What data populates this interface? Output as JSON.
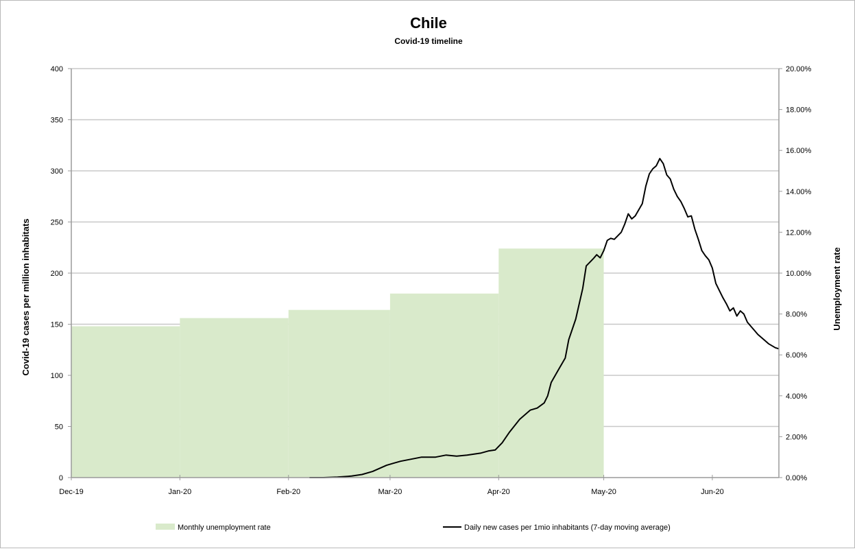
{
  "chart_data": {
    "type": "line",
    "title": "Chile",
    "subtitle": "Covid-19 timeline",
    "ylabel": "Covid-19 cases per million inhabitats",
    "y2label": "Unemployment rate",
    "ylim": [
      0,
      400
    ],
    "y2lim": [
      0,
      0.2
    ],
    "xlim": [
      "2019-12-01",
      "2020-06-20"
    ],
    "yticks": [
      "0",
      "50",
      "100",
      "150",
      "200",
      "250",
      "300",
      "350",
      "400"
    ],
    "y2ticks": [
      "0.00%",
      "2.00%",
      "4.00%",
      "6.00%",
      "8.00%",
      "10.00%",
      "12.00%",
      "14.00%",
      "16.00%",
      "18.00%",
      "20.00%"
    ],
    "xticks": [
      {
        "date": "2019-12-01",
        "label": "Dec-19"
      },
      {
        "date": "2020-01-01",
        "label": "Jan-20"
      },
      {
        "date": "2020-02-01",
        "label": "Feb-20"
      },
      {
        "date": "2020-03-01",
        "label": "Mar-20"
      },
      {
        "date": "2020-04-01",
        "label": "Apr-20"
      },
      {
        "date": "2020-05-01",
        "label": "May-20"
      },
      {
        "date": "2020-06-01",
        "label": "Jun-20"
      }
    ],
    "grid": "horizontal",
    "legend_position": "bottom",
    "series": [
      {
        "name": "Monthly unemployment rate",
        "type": "area",
        "axis": "right",
        "color": "#d9eacb",
        "points": [
          {
            "start": "2019-12-01",
            "end": "2020-01-01",
            "value": 0.074
          },
          {
            "start": "2020-01-01",
            "end": "2020-02-01",
            "value": 0.078
          },
          {
            "start": "2020-02-01",
            "end": "2020-03-01",
            "value": 0.082
          },
          {
            "start": "2020-03-01",
            "end": "2020-04-01",
            "value": 0.09
          },
          {
            "start": "2020-04-01",
            "end": "2020-05-01",
            "value": 0.112
          }
        ]
      },
      {
        "name": "Daily new cases per 1mio inhabitants (7-day moving average)",
        "type": "line",
        "axis": "left",
        "color": "#000000",
        "points": [
          [
            "2020-02-07",
            0
          ],
          [
            "2020-02-11",
            0
          ],
          [
            "2020-02-15",
            0.5
          ],
          [
            "2020-02-19",
            1.5
          ],
          [
            "2020-02-22",
            3
          ],
          [
            "2020-02-25",
            6
          ],
          [
            "2020-02-27",
            9
          ],
          [
            "2020-02-29",
            12
          ],
          [
            "2020-03-02",
            14
          ],
          [
            "2020-03-04",
            16
          ],
          [
            "2020-03-07",
            18
          ],
          [
            "2020-03-10",
            20
          ],
          [
            "2020-03-14",
            20
          ],
          [
            "2020-03-17",
            22
          ],
          [
            "2020-03-20",
            21
          ],
          [
            "2020-03-23",
            22
          ],
          [
            "2020-03-27",
            24
          ],
          [
            "2020-03-29",
            26
          ],
          [
            "2020-03-31",
            27
          ],
          [
            "2020-04-02",
            34
          ],
          [
            "2020-04-04",
            44
          ],
          [
            "2020-04-07",
            57
          ],
          [
            "2020-04-10",
            66
          ],
          [
            "2020-04-12",
            68
          ],
          [
            "2020-04-14",
            73
          ],
          [
            "2020-04-15",
            80
          ],
          [
            "2020-04-16",
            93
          ],
          [
            "2020-04-18",
            105
          ],
          [
            "2020-04-20",
            117
          ],
          [
            "2020-04-21",
            135
          ],
          [
            "2020-04-23",
            155
          ],
          [
            "2020-04-25",
            185
          ],
          [
            "2020-04-26",
            207
          ],
          [
            "2020-04-28",
            214
          ],
          [
            "2020-04-29",
            218
          ],
          [
            "2020-04-30",
            215
          ],
          [
            "2020-05-01",
            222
          ],
          [
            "2020-05-02",
            232
          ],
          [
            "2020-05-03",
            234
          ],
          [
            "2020-05-04",
            233
          ],
          [
            "2020-05-06",
            240
          ],
          [
            "2020-05-07",
            248
          ],
          [
            "2020-05-08",
            258
          ],
          [
            "2020-05-09",
            253
          ],
          [
            "2020-05-10",
            256
          ],
          [
            "2020-05-12",
            268
          ],
          [
            "2020-05-13",
            285
          ],
          [
            "2020-05-14",
            297
          ],
          [
            "2020-05-15",
            302
          ],
          [
            "2020-05-16",
            305
          ],
          [
            "2020-05-17",
            312
          ],
          [
            "2020-05-18",
            307
          ],
          [
            "2020-05-19",
            296
          ],
          [
            "2020-05-20",
            292
          ],
          [
            "2020-05-21",
            282
          ],
          [
            "2020-05-22",
            275
          ],
          [
            "2020-05-23",
            270
          ],
          [
            "2020-05-24",
            263
          ],
          [
            "2020-05-25",
            255
          ],
          [
            "2020-05-26",
            256
          ],
          [
            "2020-05-27",
            243
          ],
          [
            "2020-05-28",
            233
          ],
          [
            "2020-05-29",
            222
          ],
          [
            "2020-05-30",
            217
          ],
          [
            "2020-05-31",
            213
          ],
          [
            "2020-06-01",
            205
          ],
          [
            "2020-06-02",
            190
          ],
          [
            "2020-06-03",
            183
          ],
          [
            "2020-06-04",
            176
          ],
          [
            "2020-06-05",
            170
          ],
          [
            "2020-06-06",
            163
          ],
          [
            "2020-06-07",
            166
          ],
          [
            "2020-06-08",
            158
          ],
          [
            "2020-06-09",
            163
          ],
          [
            "2020-06-10",
            160
          ],
          [
            "2020-06-11",
            152
          ],
          [
            "2020-06-12",
            148
          ],
          [
            "2020-06-13",
            144
          ],
          [
            "2020-06-14",
            140
          ],
          [
            "2020-06-15",
            137
          ],
          [
            "2020-06-16",
            134
          ],
          [
            "2020-06-17",
            131
          ],
          [
            "2020-06-18",
            129
          ],
          [
            "2020-06-19",
            127
          ],
          [
            "2020-06-20",
            126
          ]
        ]
      }
    ]
  }
}
